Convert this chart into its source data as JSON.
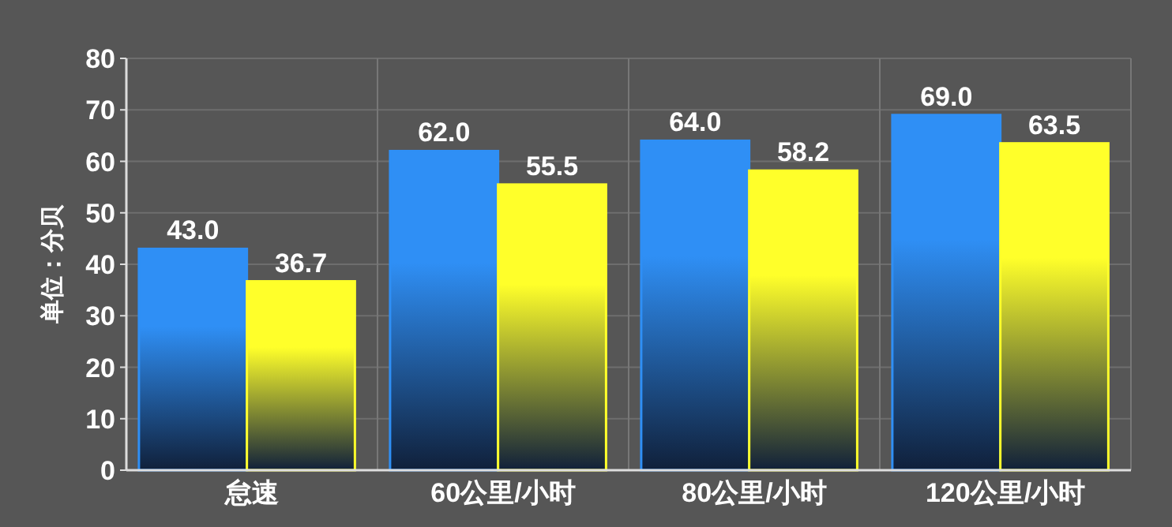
{
  "chart_data": {
    "type": "bar",
    "ylabel": "单位：分贝",
    "categories": [
      "怠速",
      "60公里/小时",
      "80公里/小时",
      "120公里/小时"
    ],
    "series": [
      {
        "color": "#2f8ff5",
        "values": [
          43.0,
          62.0,
          64.0,
          69.0
        ],
        "value_labels": [
          "43.0",
          "62.0",
          "64.0",
          "69.0"
        ]
      },
      {
        "color": "#ffff2a",
        "values": [
          36.7,
          55.5,
          58.2,
          63.5
        ],
        "value_labels": [
          "36.7",
          "55.5",
          "58.2",
          "63.5"
        ]
      }
    ],
    "ylim": [
      0,
      80
    ],
    "yticks": [
      0,
      10,
      20,
      30,
      40,
      50,
      60,
      70,
      80
    ],
    "grid": true
  }
}
